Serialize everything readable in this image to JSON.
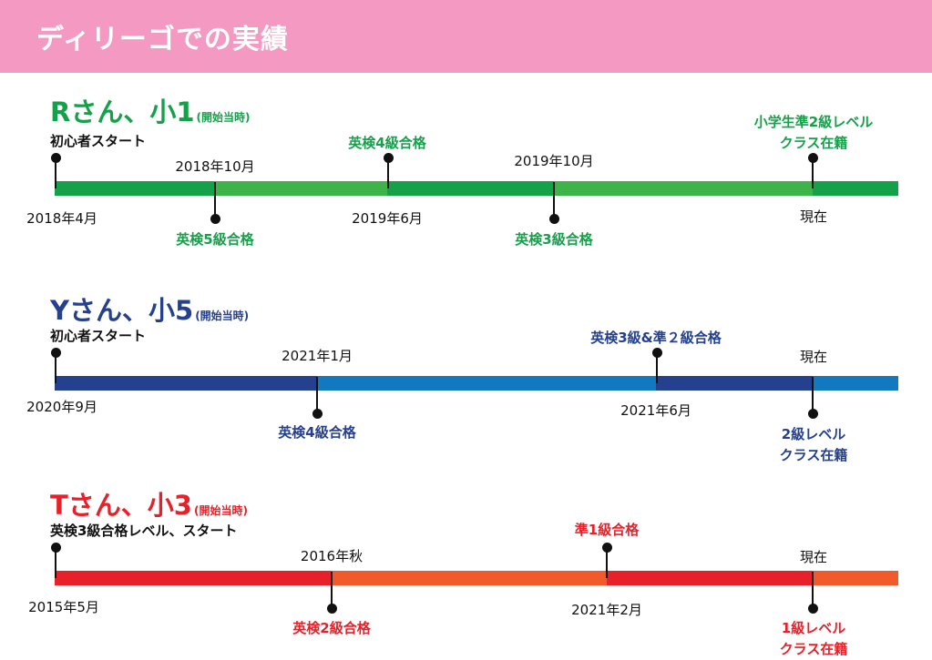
{
  "header": {
    "title": "ディリーゴでの実績",
    "bg_color": "#f49ac2"
  },
  "timelines": [
    {
      "name": "Rさん、小1",
      "note": "(開始当時)",
      "color": "#15a14a",
      "start_text": "初心者スタート",
      "dates": [
        "2018年4月",
        "2018年10月",
        "2019年6月",
        "2019年10月",
        "現在"
      ],
      "events": [
        "英検5級合格",
        "英検4級合格",
        "英検3級合格",
        "小学生準2級レベル",
        "クラス在籍"
      ]
    },
    {
      "name": "Yさん、小5",
      "note": "(開始当時)",
      "color": "#24408e",
      "start_text": "初心者スタート",
      "dates": [
        "2020年9月",
        "2021年1月",
        "2021年6月",
        "現在"
      ],
      "events": [
        "英検4級合格",
        "英検3級&準２級合格",
        "2級レベル",
        "クラス在籍"
      ]
    },
    {
      "name": "Tさん、小3",
      "note": "(開始当時)",
      "color": "#e8202a",
      "start_text": "英検3級合格レベル、スタート",
      "dates": [
        "2015年5月",
        "2016年秋",
        "2021年2月",
        "現在"
      ],
      "events": [
        "英検2級合格",
        "準1級合格",
        "1級レベル",
        "クラス在籍"
      ]
    }
  ]
}
